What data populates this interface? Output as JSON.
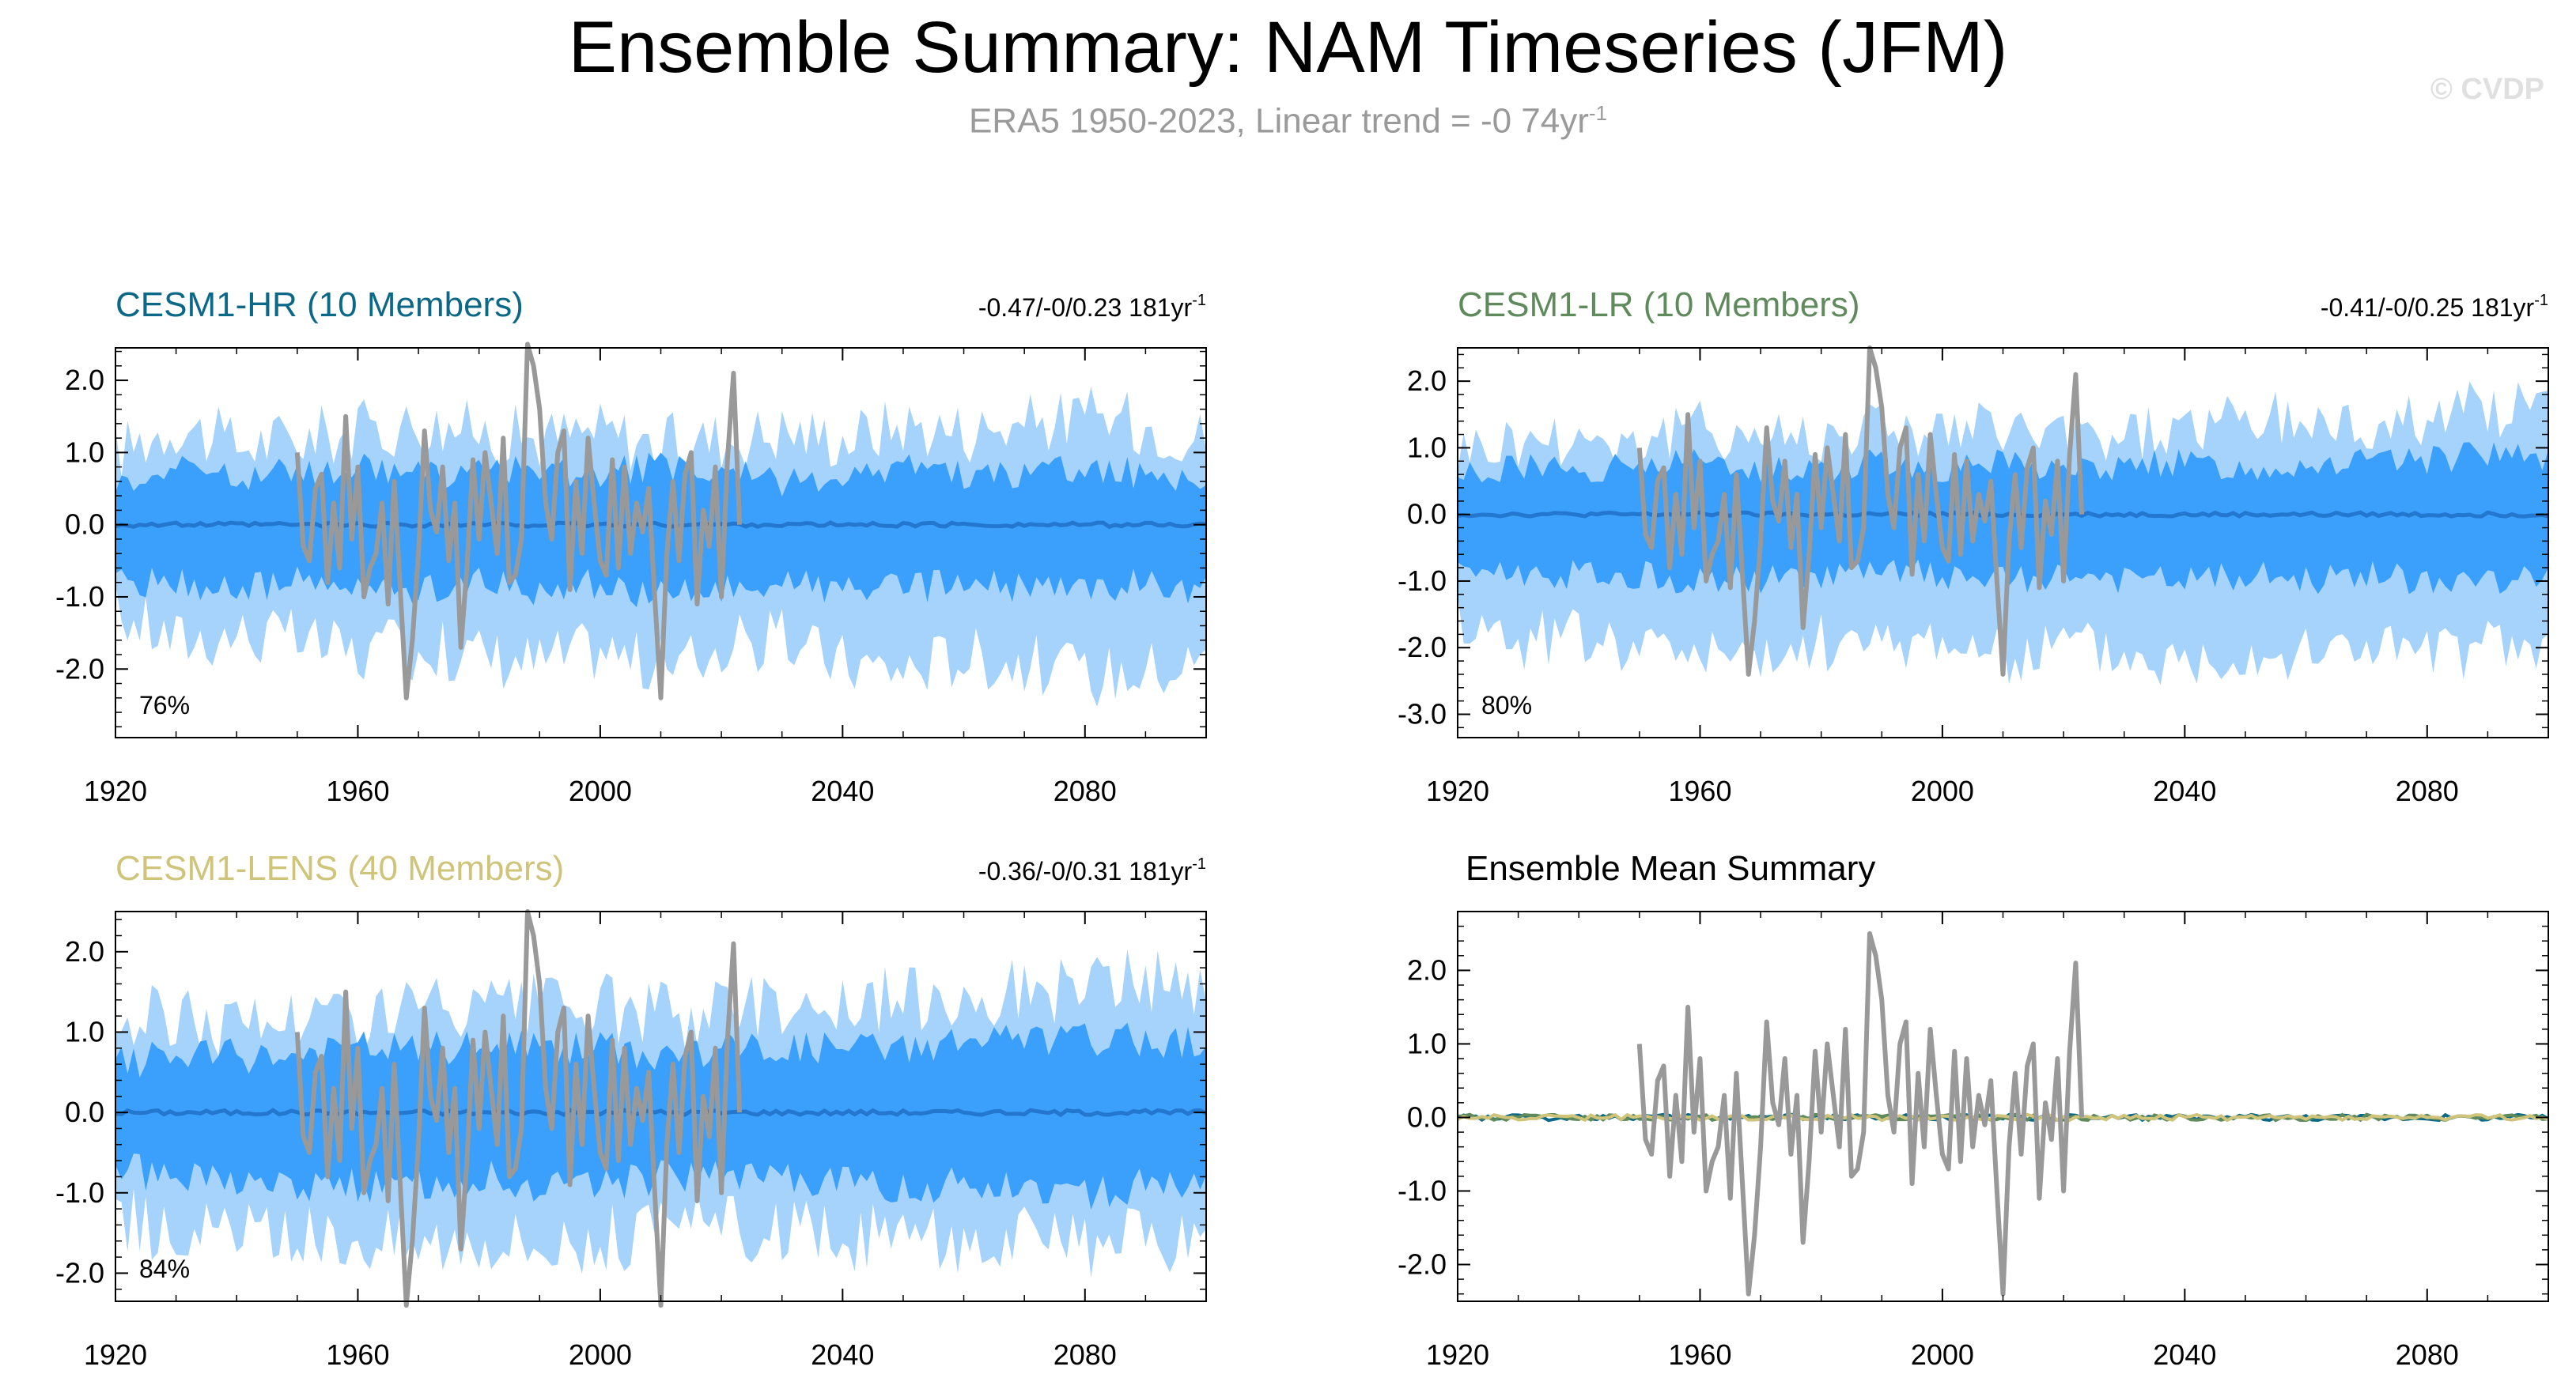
{
  "title": "Ensemble Summary: NAM Timeseries (JFM)",
  "subtitle": "ERA5 1950-2023, Linear trend = -0 74yr",
  "subtitle_sup": "-1",
  "watermark": "© CVDP",
  "colors": {
    "outer_band": "#a6d3fc",
    "inner_band": "#3aa0fb",
    "ens_mean": "#2477cf",
    "obs": "#999999",
    "hr": "#0b6887",
    "lr": "#5f8a5c",
    "lens": "#cfc47a"
  },
  "panels": [
    {
      "id": "hr",
      "title": "CESM1-HR (10 Members)",
      "title_color": "#0b6887",
      "trend": "-0.47/-0/0.23 181yr",
      "trend_sup": "-1",
      "percent": "76%",
      "yticks": [
        "2.0",
        "1.0",
        "0.0",
        "-1.0",
        "-2.0"
      ],
      "xticks": [
        "1920",
        "1960",
        "2000",
        "2040",
        "2080"
      ]
    },
    {
      "id": "lr",
      "title": "CESM1-LR (10 Members)",
      "title_color": "#5f8a5c",
      "trend": "-0.41/-0/0.25 181yr",
      "trend_sup": "-1",
      "percent": "80%",
      "yticks": [
        "2.0",
        "1.0",
        "0.0",
        "-1.0",
        "-2.0",
        "-3.0"
      ],
      "xticks": [
        "1920",
        "1960",
        "2000",
        "2040",
        "2080"
      ]
    },
    {
      "id": "lens",
      "title": "CESM1-LENS (40 Members)",
      "title_color": "#cfc47a",
      "trend": "-0.36/-0/0.31 181yr",
      "trend_sup": "-1",
      "percent": "84%",
      "yticks": [
        "2.0",
        "1.0",
        "0.0",
        "-1.0",
        "-2.0"
      ],
      "xticks": [
        "1920",
        "1960",
        "2000",
        "2040",
        "2080"
      ]
    },
    {
      "id": "summary",
      "title": "Ensemble Mean Summary",
      "title_color": "#000000",
      "trend": "",
      "trend_sup": "",
      "percent": "",
      "yticks": [
        "2.0",
        "1.0",
        "0.0",
        "-1.0",
        "-2.0"
      ],
      "xticks": [
        "1920",
        "1960",
        "2000",
        "2040",
        "2080"
      ]
    }
  ],
  "chart_data": [
    {
      "type": "area",
      "title": "CESM1-HR (10 Members)",
      "x_range": [
        1920,
        2100
      ],
      "ylim": [
        -2.95,
        2.45
      ],
      "series": [
        {
          "name": "",
          "description": "",
          "x": [
            1920,
            1930,
            1940,
            1950,
            1960,
            1970,
            1980,
            1990,
            2000,
            2010,
            2020,
            2030,
            2040,
            2050,
            2060,
            2070,
            2080,
            2090,
            2100
          ],
          "lower": [
            -1.2,
            -1.6,
            -1.5,
            -1.6,
            -1.8,
            -1.7,
            -1.8,
            -1.9,
            -1.7,
            -2.0,
            -1.7,
            -1.6,
            -1.9,
            -2.0,
            -1.8,
            -1.9,
            -2.1,
            -2.0,
            -1.9
          ],
          "upper": [
            1.0,
            1.4,
            1.1,
            1.2,
            1.3,
            1.4,
            1.3,
            1.2,
            1.3,
            1.1,
            1.2,
            1.3,
            1.2,
            1.4,
            1.3,
            1.4,
            1.5,
            1.4,
            1.2
          ]
        },
        {
          "name": "",
          "description": "",
          "x": [
            1920,
            1930,
            1940,
            1950,
            1960,
            1970,
            1980,
            1990,
            2000,
            2010,
            2020,
            2030,
            2040,
            2050,
            2060,
            2070,
            2080,
            2090,
            2100
          ],
          "lower": [
            -0.8,
            -0.8,
            -0.9,
            -0.8,
            -0.9,
            -0.9,
            -0.8,
            -0.9,
            -0.8,
            -1.0,
            -0.9,
            -0.8,
            -0.9,
            -0.9,
            -0.8,
            -0.9,
            -0.9,
            -0.8,
            -0.9
          ],
          "upper": [
            0.6,
            0.8,
            0.7,
            0.7,
            0.8,
            0.7,
            0.7,
            0.8,
            0.7,
            0.8,
            0.7,
            0.6,
            0.7,
            0.8,
            0.7,
            0.7,
            0.8,
            0.7,
            0.6
          ]
        },
        {
          "name": "",
          "x": [
            1920,
            1960,
            2000,
            2040,
            2080,
            2100
          ],
          "y": [
            0.0,
            0.0,
            0.0,
            0.0,
            0.0,
            0.0
          ]
        }
      ]
    },
    {
      "type": "area",
      "title": "CESM1-LR (10 Members)",
      "x_range": [
        1920,
        2100
      ],
      "ylim": [
        -3.35,
        2.5
      ],
      "series": [
        {
          "name": "",
          "description": "",
          "x": [
            1920,
            1930,
            1940,
            1950,
            1960,
            1970,
            1980,
            1990,
            2000,
            2010,
            2020,
            2030,
            2040,
            2050,
            2060,
            2070,
            2080,
            2090,
            2100
          ],
          "lower": [
            -1.5,
            -1.9,
            -1.8,
            -2.0,
            -2.0,
            -2.3,
            -1.9,
            -2.0,
            -1.8,
            -2.2,
            -1.9,
            -2.1,
            -2.2,
            -2.0,
            -2.1,
            -1.9,
            -2.1,
            -2.0,
            -2.0
          ],
          "upper": [
            1.0,
            1.1,
            1.2,
            1.1,
            1.3,
            1.2,
            1.2,
            1.4,
            1.2,
            1.3,
            1.1,
            1.2,
            1.3,
            1.4,
            1.4,
            1.3,
            1.5,
            1.6,
            1.6
          ]
        },
        {
          "name": "",
          "description": "",
          "x": [
            1920,
            1930,
            1940,
            1950,
            1960,
            1970,
            1980,
            1990,
            2000,
            2010,
            2020,
            2030,
            2040,
            2050,
            2060,
            2070,
            2080,
            2090,
            2100
          ],
          "lower": [
            -0.8,
            -0.9,
            -0.9,
            -0.9,
            -1.0,
            -1.0,
            -0.9,
            -0.9,
            -0.9,
            -1.0,
            -0.9,
            -1.0,
            -1.0,
            -0.9,
            -1.0,
            -0.9,
            -1.0,
            -1.0,
            -1.0
          ],
          "upper": [
            0.6,
            0.7,
            0.7,
            0.7,
            0.8,
            0.7,
            0.7,
            0.8,
            0.7,
            0.8,
            0.7,
            0.7,
            0.8,
            0.7,
            0.8,
            0.8,
            0.8,
            0.9,
            0.8
          ]
        },
        {
          "name": "",
          "x": [
            1920,
            1960,
            2000,
            2040,
            2080,
            2100
          ],
          "y": [
            0.0,
            0.0,
            0.0,
            0.0,
            0.0,
            0.0
          ]
        }
      ]
    },
    {
      "type": "area",
      "title": "CESM1-LENS (40 Members)",
      "x_range": [
        1920,
        2100
      ],
      "ylim": [
        -2.35,
        2.5
      ],
      "series": [
        {
          "name": "",
          "description": "",
          "x": [
            1920,
            1930,
            1940,
            1950,
            1960,
            1970,
            1980,
            1990,
            2000,
            2010,
            2020,
            2030,
            2040,
            2050,
            2060,
            2070,
            2080,
            2090,
            2100
          ],
          "lower": [
            -1.3,
            -1.5,
            -1.5,
            -1.6,
            -1.5,
            -1.6,
            -1.5,
            -1.6,
            -1.6,
            -1.5,
            -1.4,
            -1.5,
            -1.6,
            -1.5,
            -1.6,
            -1.6,
            -1.7,
            -1.6,
            -1.7
          ],
          "upper": [
            1.1,
            1.2,
            1.1,
            1.2,
            1.2,
            1.3,
            1.2,
            1.3,
            1.3,
            1.2,
            1.3,
            1.4,
            1.3,
            1.4,
            1.5,
            1.5,
            1.6,
            1.6,
            1.6
          ]
        },
        {
          "name": "",
          "description": "",
          "x": [
            1920,
            1930,
            1940,
            1950,
            1960,
            1970,
            1980,
            1990,
            2000,
            2010,
            2020,
            2030,
            2040,
            2050,
            2060,
            2070,
            2080,
            2090,
            2100
          ],
          "lower": [
            -0.7,
            -0.8,
            -0.8,
            -0.9,
            -0.9,
            -0.9,
            -0.8,
            -0.9,
            -0.9,
            -0.8,
            -0.8,
            -0.8,
            -0.9,
            -0.9,
            -0.9,
            -0.9,
            -1.0,
            -0.9,
            -1.0
          ],
          "upper": [
            0.6,
            0.7,
            0.7,
            0.7,
            0.8,
            0.8,
            0.8,
            0.8,
            0.8,
            0.7,
            0.8,
            0.8,
            0.8,
            0.8,
            0.9,
            0.9,
            0.9,
            0.9,
            0.9
          ]
        },
        {
          "name": "",
          "x": [
            1920,
            1960,
            2000,
            2040,
            2080,
            2100
          ],
          "y": [
            0.0,
            0.0,
            0.0,
            0.0,
            0.0,
            0.0
          ]
        }
      ]
    },
    {
      "type": "line",
      "title": "Ensemble Mean Summary",
      "x_range": [
        1920,
        2100
      ],
      "ylim": [
        -2.5,
        2.8
      ],
      "series": [
        {
          "name": "",
          "x": [
            1920,
            1960,
            2000,
            2040,
            2080,
            2100
          ],
          "y": [
            0.0,
            0.0,
            0.0,
            0.0,
            0.0,
            0.0
          ]
        },
        {
          "name": "",
          "x": [
            1920,
            1960,
            2000,
            2040,
            2080,
            2100
          ],
          "y": [
            0.0,
            0.0,
            0.0,
            0.0,
            0.0,
            0.0
          ]
        },
        {
          "name": "",
          "x": [
            1920,
            1960,
            2000,
            2040,
            2080,
            2100
          ],
          "y": [
            0.0,
            0.0,
            0.0,
            0.0,
            0.0,
            0.0
          ]
        }
      ]
    }
  ],
  "observed": {
    "name": "",
    "x": [
      1950,
      1951,
      1952,
      1953,
      1954,
      1955,
      1956,
      1957,
      1958,
      1959,
      1960,
      1961,
      1962,
      1963,
      1964,
      1965,
      1966,
      1967,
      1968,
      1969,
      1970,
      1971,
      1972,
      1973,
      1974,
      1975,
      1976,
      1977,
      1978,
      1979,
      1980,
      1981,
      1982,
      1983,
      1984,
      1985,
      1986,
      1987,
      1988,
      1989,
      1990,
      1991,
      1992,
      1993,
      1994,
      1995,
      1996,
      1997,
      1998,
      1999,
      2000,
      2001,
      2002,
      2003,
      2004,
      2005,
      2006,
      2007,
      2008,
      2009,
      2010,
      2011,
      2012,
      2013,
      2014,
      2015,
      2016,
      2017,
      2018,
      2019,
      2020,
      2021,
      2022,
      2023
    ],
    "y": [
      1.0,
      -0.3,
      -0.5,
      0.5,
      0.7,
      -0.8,
      0.3,
      -0.6,
      1.5,
      -0.2,
      0.8,
      -1.0,
      -0.6,
      -0.4,
      0.3,
      -1.1,
      0.6,
      -0.9,
      -2.4,
      -1.6,
      -0.4,
      1.3,
      0.2,
      -0.1,
      0.8,
      -0.5,
      0.3,
      -1.7,
      -0.6,
      0.9,
      -0.2,
      1.0,
      0.3,
      -0.4,
      1.2,
      -0.8,
      -0.7,
      -0.2,
      2.5,
      2.2,
      1.6,
      0.3,
      -0.2,
      1.0,
      1.3,
      -0.9,
      0.6,
      -0.4,
      1.2,
      0.3,
      -0.5,
      -0.7,
      0.9,
      -0.6,
      0.8,
      -0.4,
      0.3,
      -0.1,
      0.5,
      -1.0,
      -2.4,
      -0.4,
      0.6,
      -0.5,
      0.7,
      1.0,
      -1.1,
      0.2,
      -0.3,
      0.8,
      -1.0,
      0.9,
      2.1,
      0.0
    ]
  }
}
